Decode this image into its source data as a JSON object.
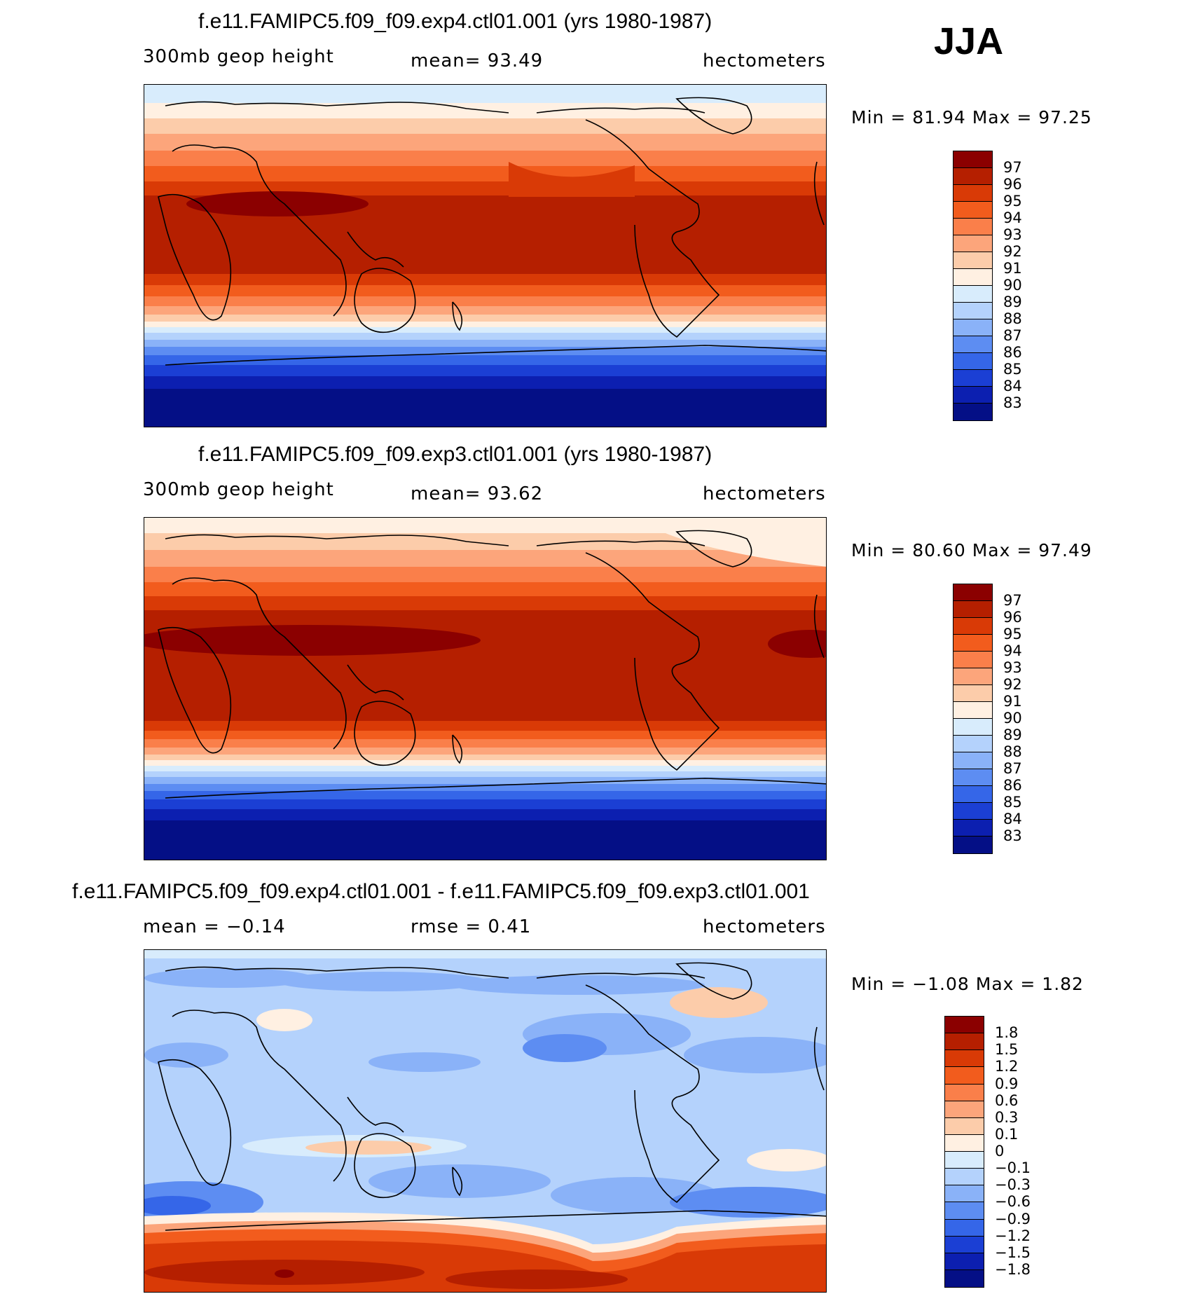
{
  "season": "JJA",
  "panels": [
    {
      "title": "f.e11.FAMIPC5.f09_f09.exp4.ctl01.001 (yrs 1980-1987)",
      "left_label": "300mb geop height",
      "center_label": "mean=   93.49",
      "right_label": "hectometers",
      "minmax": "Min =   81.94 Max =   97.25",
      "legend_labels": [
        "97",
        "96",
        "95",
        "94",
        "93",
        "92",
        "91",
        "90",
        "89",
        "88",
        "87",
        "86",
        "85",
        "84",
        "83"
      ],
      "legend_colors": [
        "#8b0000",
        "#b51f00",
        "#d93a06",
        "#f25c1d",
        "#fa7f4a",
        "#fca57b",
        "#fcccaa",
        "#fff0e2",
        "#d8ecfc",
        "#b4d2fc",
        "#8ab2f8",
        "#5d8df2",
        "#3566e8",
        "#1b3fd4",
        "#0c1fb0",
        "#040f86"
      ]
    },
    {
      "title": "f.e11.FAMIPC5.f09_f09.exp3.ctl01.001 (yrs 1980-1987)",
      "left_label": "300mb geop height",
      "center_label": "mean=   93.62",
      "right_label": "hectometers",
      "minmax": "Min =   80.60 Max =   97.49",
      "legend_labels": [
        "97",
        "96",
        "95",
        "94",
        "93",
        "92",
        "91",
        "90",
        "89",
        "88",
        "87",
        "86",
        "85",
        "84",
        "83"
      ],
      "legend_colors": [
        "#8b0000",
        "#b51f00",
        "#d93a06",
        "#f25c1d",
        "#fa7f4a",
        "#fca57b",
        "#fcccaa",
        "#fff0e2",
        "#d8ecfc",
        "#b4d2fc",
        "#8ab2f8",
        "#5d8df2",
        "#3566e8",
        "#1b3fd4",
        "#0c1fb0",
        "#040f86"
      ]
    },
    {
      "title": "f.e11.FAMIPC5.f09_f09.exp4.ctl01.001 - f.e11.FAMIPC5.f09_f09.exp3.ctl01.001",
      "left_label": "mean =   −0.14",
      "center_label": "rmse =    0.41",
      "right_label": "hectometers",
      "minmax": "Min =   −1.08 Max =    1.82",
      "legend_labels": [
        "1.8",
        "1.5",
        "1.2",
        "0.9",
        "0.6",
        "0.3",
        "0.1",
        "0",
        "−0.1",
        "−0.3",
        "−0.6",
        "−0.9",
        "−1.2",
        "−1.5",
        "−1.8"
      ],
      "legend_colors": [
        "#8b0000",
        "#b51f00",
        "#d93a06",
        "#f25c1d",
        "#fa7f4a",
        "#fca57b",
        "#fcccaa",
        "#fff0e2",
        "#d8ecfc",
        "#b4d2fc",
        "#8ab2f8",
        "#5d8df2",
        "#3566e8",
        "#1b3fd4",
        "#0c1fb0",
        "#040f86"
      ]
    }
  ]
}
